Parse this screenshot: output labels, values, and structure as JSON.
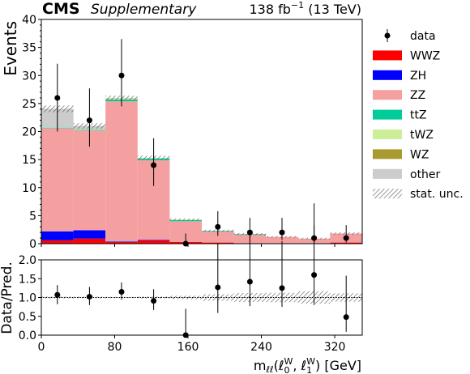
{
  "header": {
    "cms": "CMS",
    "supplementary": "Supplementary",
    "lumi_base": "138 fb",
    "lumi_exp": "−1",
    "lumi_energy": "(13 TeV)"
  },
  "colors": {
    "WWZ": "#ff0000",
    "ZH": "#0000ff",
    "ZZ": "#f4a0a0",
    "ttZ": "#00cc99",
    "tWZ": "#ccee99",
    "WZ": "#a89a2e",
    "other": "#cccccc",
    "hatch": "#555555"
  },
  "chart_data": [
    {
      "type": "bar",
      "stacked": true,
      "x_unit": "GeV",
      "bin_edges": [
        0,
        35,
        70,
        105,
        140,
        175,
        210,
        245,
        280,
        315,
        350
      ],
      "xlim": [
        0,
        350
      ],
      "ylim": [
        0,
        40
      ],
      "yticks": [
        0,
        5,
        10,
        15,
        20,
        25,
        30,
        35,
        40
      ],
      "ylabel": "Events",
      "series": [
        {
          "name": "WWZ",
          "values": [
            0.6,
            0.9,
            0.3,
            0.6,
            0.3,
            0.2,
            0.1,
            0.1,
            0.0,
            0.2
          ]
        },
        {
          "name": "ZH",
          "values": [
            1.6,
            1.5,
            0.1,
            0.1,
            0.0,
            0.0,
            0.0,
            0.0,
            0.0,
            0.0
          ]
        },
        {
          "name": "ZZ",
          "values": [
            18.4,
            17.8,
            25.0,
            14.2,
            3.7,
            2.0,
            1.5,
            1.1,
            0.9,
            1.6
          ]
        },
        {
          "name": "ttZ",
          "values": [
            0.1,
            0.1,
            0.3,
            0.3,
            0.2,
            0.1,
            0.1,
            0.0,
            0.0,
            0.0
          ]
        },
        {
          "name": "tWZ",
          "values": [
            0.05,
            0.1,
            0.2,
            0.1,
            0.1,
            0.0,
            0.0,
            0.0,
            0.0,
            0.0
          ]
        },
        {
          "name": "WZ",
          "values": [
            0.0,
            0.0,
            0.0,
            0.0,
            0.0,
            0.0,
            0.0,
            0.0,
            0.0,
            0.0
          ]
        },
        {
          "name": "other",
          "values": [
            3.3,
            0.6,
            0.1,
            0.0,
            0.0,
            0.0,
            0.0,
            0.0,
            0.0,
            0.0
          ]
        }
      ],
      "stat_unc": [
        0.6,
        0.5,
        0.4,
        0.4,
        0.2,
        0.2,
        0.2,
        0.15,
        0.15,
        0.2
      ],
      "data": {
        "name": "data",
        "x": [
          17.5,
          52.5,
          87.5,
          122.5,
          157.5,
          192.5,
          227.5,
          262.5,
          297.5,
          332.5
        ],
        "y": [
          26,
          22,
          30,
          14,
          0,
          3,
          2,
          2,
          1,
          1
        ],
        "err_low": [
          6.0,
          4.7,
          5.5,
          3.7,
          0,
          1.6,
          1.3,
          1.3,
          0.8,
          0.8
        ],
        "err_high": [
          6.1,
          5.7,
          6.5,
          4.8,
          1.8,
          2.8,
          2.6,
          2.6,
          2.3,
          2.3
        ]
      },
      "legend": {
        "placement": "right, outside",
        "entries": [
          "data",
          "WWZ",
          "ZH",
          "ZZ",
          "ttZ",
          "tWZ",
          "WZ",
          "other",
          "stat. unc."
        ]
      }
    },
    {
      "type": "scatter",
      "ylabel": "Data/Pred.",
      "ylim": [
        0,
        2
      ],
      "yticks": [
        "0.0",
        "0.5",
        "1.0",
        "1.5",
        "2.0"
      ],
      "xlim": [
        0,
        350
      ],
      "xticks": [
        "0",
        "80",
        "160",
        "240",
        "320"
      ],
      "xtick_values": [
        0,
        80,
        160,
        240,
        320
      ],
      "xlabel": {
        "base": "m",
        "sub1": "ℓℓ",
        "paren_open": "(ℓ",
        "sub2": "0",
        "sup2": "W",
        "comma": ", ℓ",
        "sub3": "1",
        "sup3": "W",
        "unit": ") [GeV]"
      },
      "x": [
        17.5,
        52.5,
        87.5,
        122.5,
        157.5,
        192.5,
        227.5,
        262.5,
        297.5,
        332.5
      ],
      "y": [
        1.07,
        1.02,
        1.15,
        0.91,
        0.0,
        1.27,
        1.42,
        1.25,
        1.6,
        0.48
      ],
      "err_low": [
        0.25,
        0.22,
        0.21,
        0.24,
        0,
        0.68,
        0.65,
        0.5,
        0.8,
        0.39
      ],
      "err_high": [
        0.26,
        0.26,
        0.25,
        0.31,
        0.7,
        1.15,
        1.29,
        1.25,
        1.9,
        1.1
      ],
      "reference_line": 1.0
    }
  ]
}
